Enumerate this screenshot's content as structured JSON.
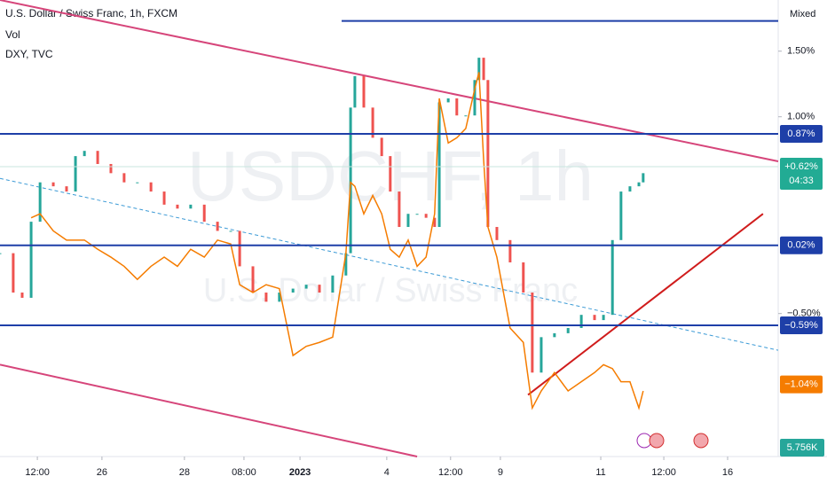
{
  "header": {
    "symbol": "U.S. Dollar / Swiss Franc, 1h, FXCM",
    "vol": "Vol",
    "compare": "DXY, TVC"
  },
  "watermark": {
    "symbol": "USDCHF, 1h",
    "name": "U.S. Dollar / Swiss Franc"
  },
  "scale_mode": "Mixed",
  "chart_data": {
    "type": "candlestick",
    "xlim": [
      0,
      200
    ],
    "ylim": [
      -1.59,
      1.89
    ],
    "yticks": [
      {
        "value": 1.5,
        "label": "1.50%"
      },
      {
        "value": 1.0,
        "label": "1.00%"
      },
      {
        "value": -0.5,
        "label": "−0.50%"
      }
    ],
    "xticks": [
      {
        "value": 9.6,
        "label": "12:00"
      },
      {
        "value": 26.2,
        "label": "26"
      },
      {
        "value": 47.4,
        "label": "28"
      },
      {
        "value": 62.7,
        "label": "08:00"
      },
      {
        "value": 77.1,
        "label": "2023"
      },
      {
        "value": 99.4,
        "label": "4"
      },
      {
        "value": 115.8,
        "label": "12:00"
      },
      {
        "value": 128.6,
        "label": "9"
      },
      {
        "value": 154.4,
        "label": "11"
      },
      {
        "value": 170.6,
        "label": "12:00"
      },
      {
        "value": 187,
        "label": "16"
      }
    ],
    "x": [
      0,
      3.4,
      5.7,
      8,
      10.3,
      13.7,
      17.1,
      19.4,
      21.7,
      25.1,
      28.5,
      31.9,
      35.3,
      38.8,
      42.2,
      45.6,
      49,
      52.5,
      55.9,
      59.3,
      61.6,
      65,
      68.4,
      71.8,
      75.3,
      78.7,
      82.1,
      85.5,
      88.9,
      90.1,
      91.2,
      93.5,
      95.8,
      98.1,
      100.3,
      102.6,
      104.9,
      107.2,
      109.5,
      111.7,
      112.9,
      115.2,
      117.4,
      119.7,
      122,
      123.1,
      124.3,
      125.4,
      127.7,
      131.1,
      134.5,
      136.8,
      139.1,
      142.5,
      146,
      149.4,
      152.8,
      155.1,
      157.4,
      159.6,
      161.9,
      164.2,
      165.3
    ],
    "series": [
      {
        "color": "#26a69a",
        "down_color": "#ef5350",
        "values": [
          -0.04,
          -0.34,
          -0.38,
          0.2,
          0.5,
          0.47,
          0.43,
          0.7,
          0.74,
          0.64,
          0.57,
          0.5,
          0.5,
          0.43,
          0.33,
          0.3,
          0.33,
          0.2,
          0.13,
          0.13,
          -0.14,
          -0.34,
          -0.41,
          -0.34,
          -0.31,
          -0.28,
          -0.34,
          -0.21,
          -0.04,
          1.07,
          1.31,
          1.07,
          0.84,
          0.7,
          0.43,
          0.16,
          0.26,
          0.26,
          0.23,
          0.16,
          1.11,
          1.14,
          1.01,
          1.01,
          1.28,
          1.45,
          1.28,
          0.16,
          0.06,
          -0.11,
          -0.34,
          -0.95,
          -0.68,
          -0.65,
          -0.61,
          -0.51,
          -0.55,
          -0.51,
          0.06,
          0.43,
          0.47,
          0.5,
          0.57
        ]
      },
      {
        "color": "#f57c00",
        "values": [
          null,
          null,
          null,
          0.23,
          0.26,
          0.13,
          0.06,
          0.06,
          0.06,
          -0.01,
          -0.07,
          -0.14,
          -0.24,
          -0.14,
          -0.07,
          -0.14,
          -0.01,
          -0.07,
          0.06,
          0.03,
          -0.28,
          -0.34,
          -0.28,
          -0.31,
          -0.82,
          -0.75,
          -0.72,
          -0.68,
          -0.04,
          0.5,
          0.47,
          0.26,
          0.4,
          0.26,
          -0.01,
          -0.07,
          0.06,
          -0.14,
          -0.07,
          0.26,
          1.14,
          0.8,
          0.84,
          0.91,
          1.21,
          1.34,
          0.67,
          0.16,
          -0.07,
          -0.61,
          -0.72,
          -1.22,
          -1.09,
          -0.95,
          -1.09,
          -1.02,
          -0.95,
          -0.89,
          -0.92,
          -1.02,
          -1.02,
          -1.22,
          -1.09
        ]
      }
    ],
    "levels": [
      {
        "value": 0.87,
        "label": "0.87%"
      },
      {
        "value": 0.02,
        "label": "0.02%"
      },
      {
        "value": -0.59,
        "label": "−0.59%"
      }
    ],
    "level_color": "#1e3fa8",
    "trend_lines": [
      {
        "color": "#d6457a",
        "x": [
          0,
          200
        ],
        "y": [
          1.89,
          0.66
        ]
      },
      {
        "color": "#d6457a",
        "x": [
          0,
          107.2
        ],
        "y": [
          -0.89,
          -1.59
        ]
      },
      {
        "color": "#d01c1c",
        "x": [
          135.7,
          196.1
        ],
        "y": [
          -1.12,
          0.26
        ]
      },
      {
        "color": "#3d9bd6",
        "dashed": true,
        "x": [
          0,
          200
        ],
        "y": [
          0.53,
          -0.78
        ]
      },
      {
        "color": "#1e3fa8",
        "x": [
          87.8,
          200
        ],
        "y": [
          1.73,
          1.73
        ]
      }
    ],
    "last_price": {
      "value": 0.62,
      "label": "+0.62%",
      "countdown": "04:33",
      "color": "#22ab94"
    },
    "compare_last": {
      "value": -1.04,
      "label": "−1.04%",
      "color": "#f57c00"
    },
    "volume_last": {
      "label": "5.756K",
      "color": "#26a69a"
    }
  }
}
